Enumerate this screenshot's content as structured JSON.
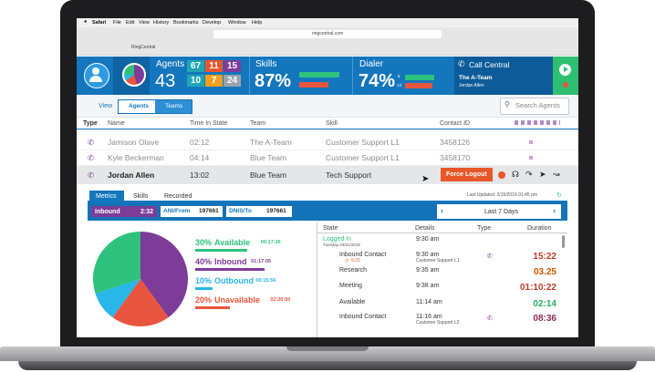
{
  "menu_bar": {
    "app": "Safari",
    "items": [
      "File",
      "Edit",
      "View",
      "History",
      "Bookmarks",
      "Develop",
      "Window",
      "Help"
    ]
  },
  "browser": {
    "url": "ringcentral.com",
    "tab": "RingCentral"
  },
  "header": {
    "agents": {
      "label": "Agents",
      "count": "43",
      "stats": [
        "67",
        "11",
        "15",
        "10",
        "7",
        "24"
      ]
    },
    "skills": {
      "label": "Skills",
      "value": "87%"
    },
    "dialer": {
      "label": "Dialer",
      "value": "74%",
      "counts": [
        "8",
        "13"
      ]
    },
    "call_central": {
      "label": "Call Central",
      "team": "The A-Team",
      "agent": "Jordan Allen"
    }
  },
  "toolbar": {
    "view_label": "View",
    "toggle": [
      "Agents",
      "Teams"
    ],
    "search_placeholder": "Search Agents"
  },
  "table": {
    "columns": [
      "Type",
      "Name",
      "Time In State",
      "Team",
      "Skill",
      "Contact ID"
    ],
    "rows": [
      [
        "Jamison Olave",
        "02:12",
        "The A-Team",
        "Customer Support L1",
        "3458126"
      ],
      [
        "Kyle Beckerman",
        "04:14",
        "Blue Team",
        "Customer Support L1",
        "3458170"
      ],
      [
        "Jordan Allen",
        "13:02",
        "Blue Team",
        "Tech Support",
        ""
      ]
    ],
    "force_logout": "Force Logout"
  },
  "detail": {
    "tabs": [
      "Metrics",
      "Skills",
      "Recorded"
    ],
    "last_updated": "Last Updated: 2/15/2016 01:45 pm",
    "status": {
      "state": "Inbound",
      "time": "2:32"
    },
    "ani": {
      "label": "ANI/From",
      "value": "197661"
    },
    "dnis": {
      "label": "DNIS/To",
      "value": "197661"
    },
    "range": "Last 7 Days"
  },
  "pie": [
    {
      "percent": 30,
      "label": "30%",
      "name": "Available",
      "duration": "00:17:26",
      "color": "#2ec27e"
    },
    {
      "percent": 40,
      "label": "40%",
      "name": "Inbound",
      "duration": "01:17:05",
      "color": "#7d3c98"
    },
    {
      "percent": 10,
      "label": "10%",
      "name": "Outbound",
      "duration": "00:15:56",
      "color": "#29b6e8"
    },
    {
      "percent": 20,
      "label": "20%",
      "name": "Unavailable",
      "duration": "02:20:50",
      "color": "#e8553e"
    }
  ],
  "log": {
    "columns": [
      "State",
      "Details",
      "Type",
      "Duration"
    ],
    "logged_in": {
      "state": "Logged In",
      "date": "Tuesday 03/01/2016",
      "time": "9:30 am"
    },
    "rows": [
      {
        "state": "Inbound Contact",
        "sub": "5:22",
        "time": "9:30 am",
        "detail": "Customer Support L1",
        "duration": "15:22"
      },
      {
        "state": "Research",
        "time": "9:35 am",
        "duration": "03.25"
      },
      {
        "state": "Meeting",
        "time": "9:38 am",
        "duration": "01:10:22"
      },
      {
        "state": "Available",
        "time": "11:14 am",
        "duration": "02:14"
      },
      {
        "state": "Inbound Contact",
        "time": "11:16 am",
        "detail": "Customer Support L2",
        "duration": "08:36"
      }
    ]
  }
}
